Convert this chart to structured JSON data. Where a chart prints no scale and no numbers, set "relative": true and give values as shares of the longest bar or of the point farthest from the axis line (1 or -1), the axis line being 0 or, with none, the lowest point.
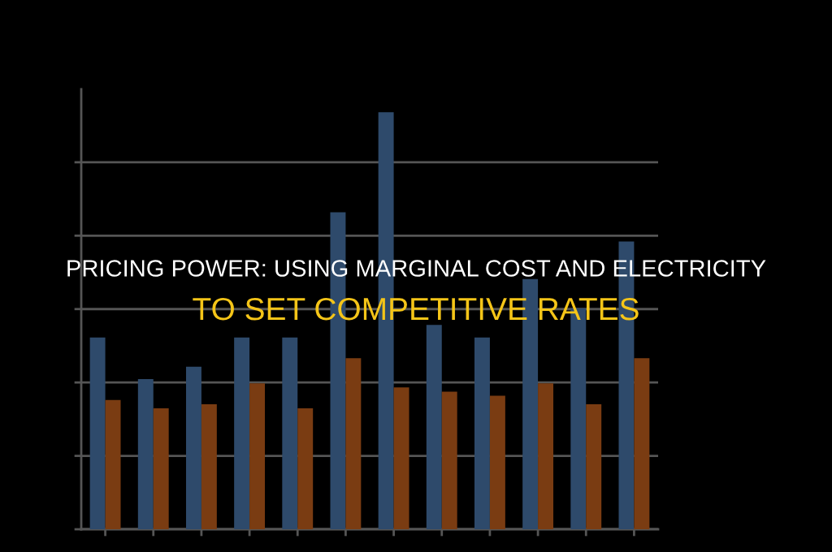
{
  "chart_data": {
    "type": "bar",
    "title": "PRICING POWER: USING MARGINAL COST AND ELECTRICITY",
    "subtitle": "TO SET COMPETITIVE RATES",
    "categories": [
      null,
      null,
      null,
      null,
      null,
      null,
      null,
      null,
      null,
      null,
      null,
      null
    ],
    "relative": true,
    "grid": "y",
    "series": [
      {
        "color": "#2e4a6b",
        "values": [
          0.46,
          0.36,
          0.39,
          0.46,
          0.46,
          0.76,
          1,
          0.49,
          0.46,
          0.6,
          0.53,
          0.69
        ]
      },
      {
        "color": "#7a3c12",
        "values": [
          0.31,
          0.29,
          0.3,
          0.35,
          0.29,
          0.41,
          0.34,
          0.33,
          0.32,
          0.35,
          0.3,
          0.41
        ]
      }
    ]
  }
}
